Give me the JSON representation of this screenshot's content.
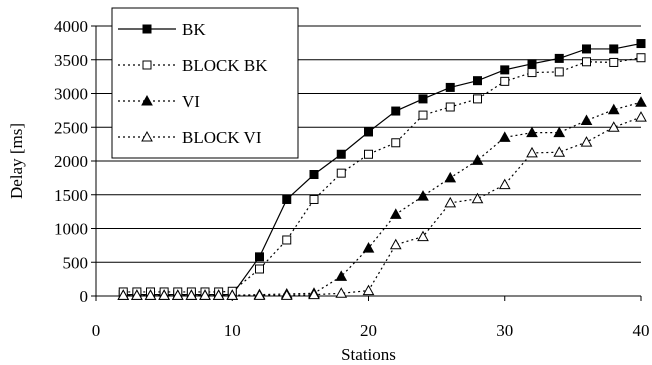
{
  "chart_data": {
    "type": "line",
    "title": "",
    "xlabel": "Stations",
    "ylabel": "Delay [ms]",
    "xlim": [
      0,
      40
    ],
    "ylim": [
      0,
      4000
    ],
    "x_ticks": [
      0,
      10,
      20,
      30,
      40
    ],
    "y_ticks": [
      0,
      500,
      1000,
      1500,
      2000,
      2500,
      3000,
      3500,
      4000
    ],
    "grid": "horizontal",
    "legend_position": "top-left",
    "series": [
      {
        "name": "BK",
        "line_style": "solid",
        "marker": "filled-square",
        "x": [
          2,
          3,
          4,
          5,
          6,
          7,
          8,
          9,
          10,
          12,
          14,
          16,
          18,
          20,
          22,
          24,
          26,
          28,
          30,
          32,
          34,
          36,
          38,
          40
        ],
        "y": [
          20,
          20,
          20,
          20,
          20,
          20,
          20,
          20,
          20,
          580,
          1430,
          1800,
          2100,
          2430,
          2740,
          2920,
          3090,
          3190,
          3350,
          3440,
          3520,
          3660,
          3660,
          3740
        ]
      },
      {
        "name": "BLOCK BK",
        "line_style": "dotted",
        "marker": "open-square",
        "x": [
          2,
          3,
          4,
          5,
          6,
          7,
          8,
          9,
          10,
          12,
          14,
          16,
          18,
          20,
          22,
          24,
          26,
          28,
          30,
          32,
          34,
          36,
          38,
          40
        ],
        "y": [
          60,
          60,
          60,
          60,
          60,
          60,
          60,
          60,
          70,
          400,
          830,
          1430,
          1820,
          2100,
          2270,
          2680,
          2800,
          2920,
          3180,
          3310,
          3320,
          3470,
          3460,
          3530
        ]
      },
      {
        "name": "VI",
        "line_style": "dotted",
        "marker": "filled-triangle",
        "x": [
          2,
          3,
          4,
          5,
          6,
          7,
          8,
          9,
          10,
          12,
          14,
          16,
          18,
          20,
          22,
          24,
          26,
          28,
          30,
          32,
          34,
          36,
          38,
          40
        ],
        "y": [
          10,
          10,
          10,
          10,
          10,
          10,
          10,
          10,
          10,
          20,
          30,
          40,
          290,
          710,
          1210,
          1480,
          1750,
          2010,
          2350,
          2420,
          2420,
          2600,
          2760,
          2870
        ]
      },
      {
        "name": "BLOCK VI",
        "line_style": "dotted",
        "marker": "open-triangle",
        "x": [
          2,
          3,
          4,
          5,
          6,
          7,
          8,
          9,
          10,
          12,
          14,
          16,
          18,
          20,
          22,
          24,
          26,
          28,
          30,
          32,
          34,
          36,
          38,
          40
        ],
        "y": [
          10,
          10,
          10,
          10,
          10,
          10,
          10,
          10,
          10,
          10,
          10,
          20,
          40,
          80,
          760,
          880,
          1380,
          1440,
          1650,
          2120,
          2130,
          2280,
          2500,
          2650
        ]
      }
    ]
  }
}
